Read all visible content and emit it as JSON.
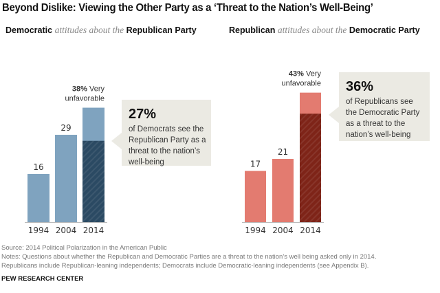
{
  "title": "Beyond Dislike: Viewing the Other Party as a ‘Threat to the Nation’s Well-Being’",
  "footer": {
    "source": "Source: 2014 Political Polarization in the American Public",
    "notes1": "Notes: Questions about whether the Republican and Democratic Parties are a threat to the nation’s well being asked only in 2014.",
    "notes2": "Republicans include Republican-leaning independents; Democrats include Democratic-leaning independents (see Appendix B).",
    "brand": "PEW RESEARCH CENTER"
  },
  "chart_data": [
    {
      "type": "bar",
      "subtitle": {
        "group": "Democratic",
        "mid": "attitudes about the",
        "target": "Republican Party"
      },
      "categories": [
        "1994",
        "2004",
        "2014"
      ],
      "values": [
        16,
        29,
        38
      ],
      "very_unfavorable_label": {
        "pct": "38%",
        "text": " Very",
        "text2": "unfavorable"
      },
      "threat_value": 27,
      "callout": {
        "pct": "27%",
        "lines": [
          "of Democrats see the",
          "Republican Party as a",
          "threat to the nation’s",
          "well-being"
        ]
      },
      "colors": {
        "bar": "#7fa3bf",
        "threat": "#2b4a63"
      }
    },
    {
      "type": "bar",
      "subtitle": {
        "group": "Republican",
        "mid": "attitudes about the",
        "target": "Democratic Party"
      },
      "categories": [
        "1994",
        "2004",
        "2014"
      ],
      "values": [
        17,
        21,
        43
      ],
      "very_unfavorable_label": {
        "pct": "43%",
        "text": " Very",
        "text2": "unfavorable"
      },
      "threat_value": 36,
      "callout": {
        "pct": "36%",
        "lines": [
          "of Republicans see",
          "the Democratic Party",
          "as a threat to the",
          "nation’s well-being"
        ]
      },
      "colors": {
        "bar": "#e37b70",
        "threat": "#7e2418"
      }
    }
  ]
}
